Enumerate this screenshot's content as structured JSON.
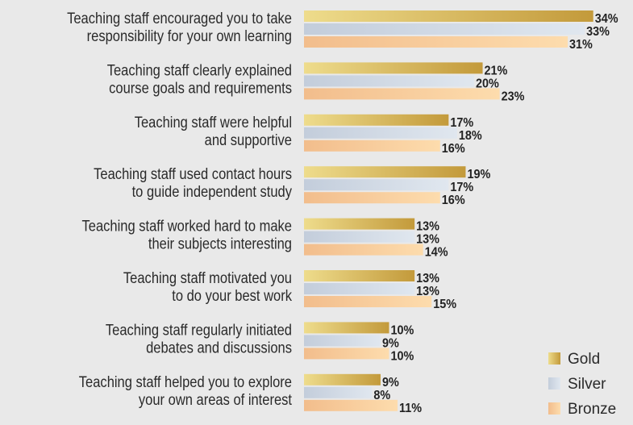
{
  "chart_data": {
    "type": "bar",
    "orientation": "horizontal",
    "categories": [
      [
        "Teaching staff encouraged you to take",
        "responsibility for your own learning"
      ],
      [
        "Teaching staff clearly explained",
        "course goals and requirements"
      ],
      [
        "Teaching staff were helpful",
        "and supportive"
      ],
      [
        "Teaching staff used contact hours",
        "to guide independent study"
      ],
      [
        "Teaching staff worked hard to make",
        "their subjects interesting"
      ],
      [
        "Teaching staff motivated you",
        "to do your best work"
      ],
      [
        "Teaching staff regularly initiated",
        "debates and discussions"
      ],
      [
        "Teaching staff helped you to explore",
        "your own areas of interest"
      ]
    ],
    "series": [
      {
        "name": "Gold",
        "values": [
          34,
          21,
          17,
          19,
          13,
          13,
          10,
          9
        ],
        "colors": [
          "#eedc8c",
          "#c39a3b"
        ]
      },
      {
        "name": "Silver",
        "values": [
          33,
          20,
          18,
          17,
          13,
          13,
          9,
          8
        ],
        "colors": [
          "#c3cddb",
          "#e0e7ef"
        ]
      },
      {
        "name": "Bronze",
        "values": [
          31,
          23,
          16,
          16,
          14,
          15,
          10,
          11
        ],
        "colors": [
          "#f2bd8c",
          "#fddcad"
        ]
      }
    ],
    "value_suffix": "%",
    "legend_position": "bottom-right",
    "grid": false
  }
}
